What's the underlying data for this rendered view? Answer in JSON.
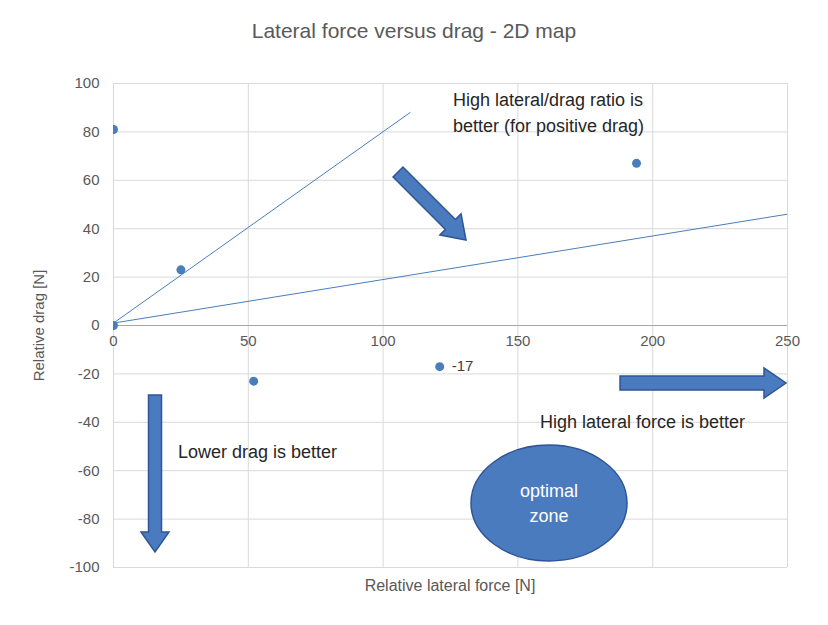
{
  "chart_data": {
    "type": "scatter",
    "title": "Lateral force versus drag - 2D map",
    "x_label": "Relative lateral force [N]",
    "y_label": "Relative drag [N]",
    "x": [
      0,
      0,
      25,
      52,
      121,
      194
    ],
    "values": [
      81,
      0,
      23,
      -23,
      -17,
      67
    ],
    "value_labels": [
      null,
      null,
      null,
      null,
      "-17",
      null
    ],
    "color": "#4a7ebb",
    "lines": [
      {
        "x": [
          0,
          110
        ],
        "values": [
          1,
          88
        ]
      },
      {
        "x": [
          0,
          250
        ],
        "values": [
          1,
          46
        ]
      }
    ],
    "xlim": [
      0,
      250
    ],
    "xticks": [
      0,
      50,
      100,
      150,
      200,
      250
    ],
    "ylim": [
      -100,
      100
    ],
    "yticks": [
      -100,
      -80,
      -60,
      -40,
      -20,
      0,
      20,
      40,
      60,
      80,
      100
    ],
    "grid": true,
    "annotations": [
      "High lateral/drag ratio is",
      "better (for positive drag)",
      "Lower drag is better",
      "High lateral force is better",
      "optimal",
      "zone"
    ]
  }
}
